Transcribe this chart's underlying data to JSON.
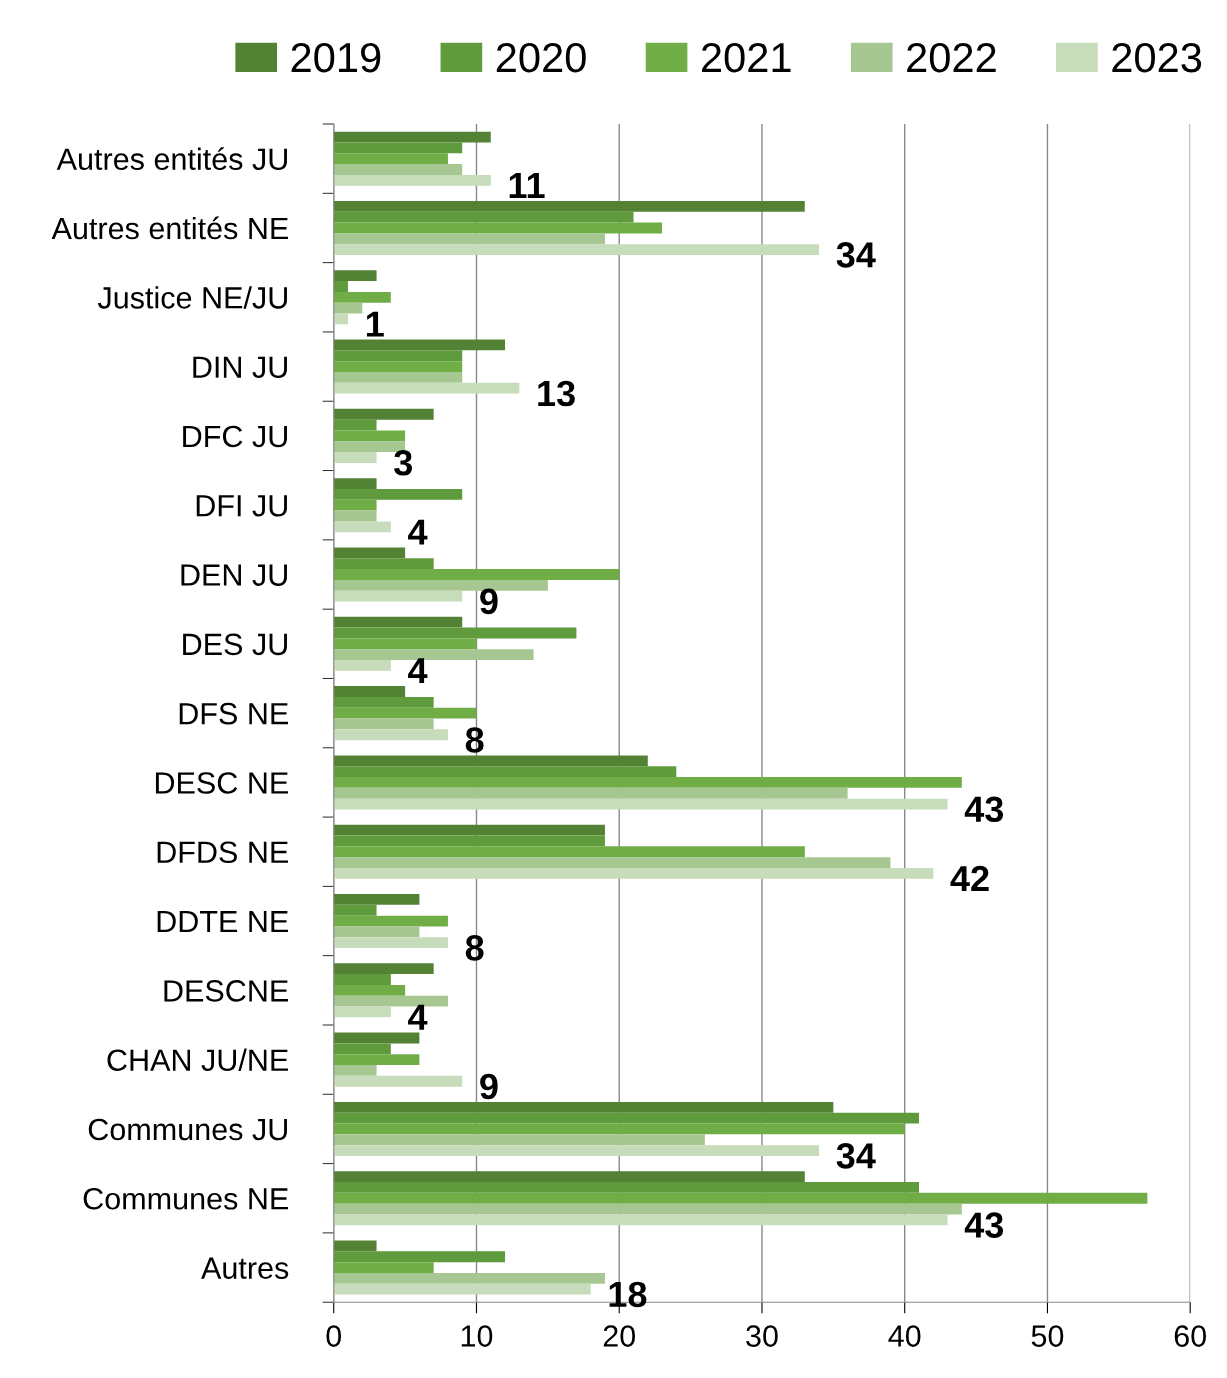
{
  "chart_data": {
    "type": "bar",
    "orientation": "horizontal",
    "categories": [
      "Autres entités JU",
      "Autres entités NE",
      "Justice NE/JU",
      "DIN JU",
      "DFC JU",
      "DFI JU",
      "DEN JU",
      "DES JU",
      "DFS NE",
      "DESC NE",
      "DFDS NE",
      "DDTE NE",
      "DESCNE",
      "CHAN JU/NE",
      "Communes JU",
      "Communes NE",
      "Autres"
    ],
    "series": [
      {
        "name": "2019",
        "color": "#548235",
        "values": [
          11,
          33,
          3,
          12,
          7,
          3,
          5,
          9,
          5,
          22,
          19,
          6,
          7,
          6,
          35,
          33,
          3
        ]
      },
      {
        "name": "2020",
        "color": "#5f9a3c",
        "values": [
          9,
          21,
          1,
          9,
          3,
          9,
          7,
          17,
          7,
          24,
          19,
          3,
          4,
          4,
          41,
          41,
          12
        ]
      },
      {
        "name": "2021",
        "color": "#70ad47",
        "values": [
          8,
          23,
          4,
          9,
          5,
          3,
          20,
          10,
          10,
          44,
          33,
          8,
          5,
          6,
          40,
          57,
          7
        ]
      },
      {
        "name": "2022",
        "color": "#a6c791",
        "values": [
          9,
          19,
          2,
          9,
          5,
          3,
          15,
          14,
          7,
          36,
          39,
          6,
          8,
          3,
          26,
          44,
          19
        ]
      },
      {
        "name": "2023",
        "color": "#c7dcba",
        "values": [
          11,
          34,
          1,
          13,
          3,
          4,
          9,
          4,
          8,
          43,
          42,
          8,
          4,
          9,
          34,
          43,
          18
        ],
        "value_labels": [
          "11",
          "34",
          "1",
          "13",
          "3",
          "4",
          "9",
          "4",
          "8",
          "43",
          "42",
          "8",
          "4",
          "9",
          "34",
          "43",
          "18"
        ]
      }
    ],
    "xlim": [
      0,
      60
    ],
    "xticks": [
      0,
      10,
      20,
      30,
      40,
      50,
      60
    ],
    "grid": "x",
    "legend": "top"
  }
}
